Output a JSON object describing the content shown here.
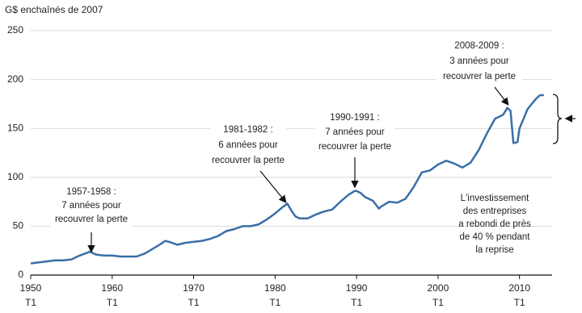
{
  "chart_data": {
    "type": "line",
    "y_label": "G$ enchaînés de 2007",
    "x": [
      1950,
      1951,
      1952,
      1953,
      1954,
      1955,
      1956,
      1957,
      1957.25,
      1958,
      1959,
      1960,
      1961,
      1962,
      1963,
      1964,
      1965,
      1966,
      1966.5,
      1967,
      1968,
      1969,
      1970,
      1971,
      1972,
      1973,
      1974,
      1975,
      1976,
      1977,
      1978,
      1979,
      1980,
      1981,
      1981.5,
      1982,
      1982.5,
      1983,
      1984,
      1985,
      1986,
      1987,
      1988,
      1989,
      1989.75,
      1990,
      1990.5,
      1991,
      1992,
      1992.75,
      1993,
      1994,
      1995,
      1996,
      1997,
      1998,
      1999,
      2000,
      2001,
      2002,
      2003,
      2004,
      2005,
      2006,
      2007,
      2008,
      2008.5,
      2008.9,
      2009.25,
      2009.75,
      2010,
      2011,
      2012,
      2012.5,
      2013
    ],
    "values": [
      12,
      13,
      14,
      15,
      15,
      16,
      20,
      23,
      24,
      21,
      20,
      20,
      19,
      19,
      19,
      22,
      27,
      32,
      35,
      34,
      31,
      33,
      34,
      35,
      37,
      40,
      45,
      47,
      50,
      50,
      52,
      57,
      63,
      70,
      73,
      66,
      60,
      58,
      58,
      62,
      65,
      67,
      75,
      82,
      86,
      86,
      84,
      80,
      76,
      68,
      70,
      75,
      74,
      78,
      90,
      105,
      107,
      113,
      117,
      114,
      110,
      115,
      128,
      145,
      160,
      164,
      171,
      168,
      135,
      136,
      150,
      170,
      180,
      184,
      184
    ],
    "color": "#3a6ea8",
    "xlim": [
      1950,
      2014
    ],
    "xticks": [
      1950,
      1960,
      1970,
      1980,
      1990,
      2000,
      2010
    ],
    "xtick_quarter": "T1",
    "ylim": [
      0,
      250
    ],
    "yticks": [
      0,
      50,
      100,
      150,
      200,
      250
    ],
    "grid": true,
    "annotations": [
      [
        "1957-1958 :",
        "7 années pour",
        "recouvrer la perte"
      ],
      [
        "1981-1982 :",
        "6 années pour",
        "recouvrer la perte"
      ],
      [
        "1990-1991 :",
        "7 années pour",
        "recouvrer la perte"
      ],
      [
        "2008-2009 :",
        "3 années pour",
        "recouvrer la perte"
      ],
      [
        "L'investissement",
        "des entreprises",
        "a rebondi de près",
        "de 40 % pendant",
        "la reprise"
      ]
    ]
  }
}
